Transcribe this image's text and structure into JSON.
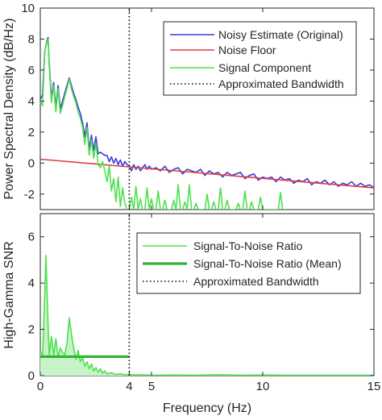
{
  "chart_data": [
    {
      "type": "line",
      "title": "",
      "xlabel": "",
      "ylabel": "Power Spectral Density (dB/Hz)",
      "xlim": [
        0,
        15
      ],
      "ylim": [
        -3,
        10
      ],
      "xticks": [
        0,
        4,
        5,
        10,
        15
      ],
      "xtick_labels_shown": false,
      "yticks": [
        -2,
        0,
        2,
        4,
        6,
        8,
        10
      ],
      "ytick_labels": [
        "-2",
        "0",
        "2",
        "4",
        "6",
        "8",
        "10"
      ],
      "grid": false,
      "legend_position": "top-right",
      "vline": {
        "x": 4,
        "style": "dotted",
        "color": "#000000"
      },
      "series": [
        {
          "name": "Noisy Estimate (Original)",
          "color": "#3b3bd6",
          "x": [
            0,
            0.1,
            0.2,
            0.3,
            0.35,
            0.4,
            0.5,
            0.6,
            0.7,
            0.8,
            0.9,
            1.0,
            1.1,
            1.2,
            1.3,
            1.4,
            1.5,
            1.6,
            1.7,
            1.8,
            1.9,
            2.0,
            2.1,
            2.2,
            2.3,
            2.4,
            2.5,
            2.6,
            2.7,
            2.8,
            2.9,
            3.0,
            3.1,
            3.2,
            3.3,
            3.4,
            3.5,
            3.6,
            3.7,
            3.8,
            3.9,
            4.0,
            4.1,
            4.2,
            4.3,
            4.4,
            4.5,
            4.6,
            4.7,
            4.8,
            4.9,
            5.0,
            5.2,
            5.4,
            5.6,
            5.8,
            6.0,
            6.2,
            6.4,
            6.6,
            6.8,
            7.0,
            7.2,
            7.4,
            7.6,
            7.8,
            8.0,
            8.2,
            8.4,
            8.6,
            8.8,
            9.0,
            9.2,
            9.4,
            9.6,
            9.8,
            10.0,
            10.2,
            10.4,
            10.6,
            10.8,
            11.0,
            11.2,
            11.4,
            11.6,
            11.8,
            12.0,
            12.2,
            12.4,
            12.6,
            12.8,
            13.0,
            13.2,
            13.4,
            13.6,
            13.8,
            14.0,
            14.2,
            14.4,
            14.6,
            14.8,
            15.0
          ],
          "y": [
            4.1,
            4.4,
            7.2,
            7.9,
            8.1,
            6.5,
            4.2,
            5.2,
            3.6,
            5.0,
            3.5,
            4.0,
            4.5,
            5.0,
            5.5,
            5.0,
            4.5,
            4.1,
            3.6,
            3.2,
            2.6,
            1.7,
            2.6,
            0.9,
            1.8,
            0.8,
            1.7,
            0.6,
            0.7,
            0.6,
            0.5,
            0.5,
            0.1,
            0.4,
            0.0,
            0.3,
            -0.1,
            0.2,
            -0.2,
            0.1,
            -0.1,
            -0.2,
            -0.5,
            -0.1,
            -0.4,
            -0.2,
            -0.5,
            -0.3,
            -0.1,
            -0.4,
            -0.2,
            -0.4,
            -0.3,
            -0.5,
            -0.2,
            -0.6,
            -0.4,
            -0.3,
            -0.7,
            -0.4,
            -0.5,
            -0.6,
            -0.4,
            -0.8,
            -0.5,
            -0.7,
            -0.6,
            -0.9,
            -0.6,
            -0.8,
            -0.7,
            -0.6,
            -1.0,
            -0.8,
            -0.7,
            -1.1,
            -0.9,
            -1.0,
            -0.9,
            -1.2,
            -0.9,
            -1.1,
            -1.0,
            -1.3,
            -1.1,
            -1.2,
            -1.0,
            -1.4,
            -1.2,
            -1.3,
            -1.1,
            -1.4,
            -1.2,
            -1.5,
            -1.3,
            -1.4,
            -1.2,
            -1.5,
            -1.3,
            -1.5,
            -1.4,
            -1.6
          ]
        },
        {
          "name": "Noise Floor",
          "color": "#e03c3c",
          "x": [
            0,
            15
          ],
          "y": [
            0.25,
            -1.6
          ]
        },
        {
          "name": "Signal Component",
          "color": "#4fe04f",
          "x": [
            0,
            0.1,
            0.2,
            0.3,
            0.35,
            0.4,
            0.5,
            0.6,
            0.7,
            0.8,
            0.9,
            1.0,
            1.1,
            1.2,
            1.3,
            1.4,
            1.5,
            1.6,
            1.7,
            1.8,
            1.9,
            2.0,
            2.1,
            2.2,
            2.3,
            2.4,
            2.5,
            2.6,
            2.7,
            2.8,
            2.9,
            3.0,
            3.1,
            3.2,
            3.3,
            3.4,
            3.5,
            3.6,
            3.7,
            3.8,
            3.9,
            4.0,
            4.1,
            4.2,
            4.3,
            4.4,
            4.5,
            4.6,
            4.7,
            4.8,
            4.9,
            5.0,
            5.1,
            5.2,
            5.3,
            5.4,
            5.5,
            5.6,
            5.7,
            5.8,
            5.9,
            6.0,
            6.1,
            6.2,
            6.3,
            6.4,
            6.5,
            6.6,
            6.7,
            6.8,
            6.9,
            7.0,
            7.1,
            7.2,
            7.3,
            7.4,
            7.5,
            7.6,
            7.7,
            7.8,
            7.9,
            8.0,
            8.1,
            8.2,
            8.3,
            8.4,
            8.5,
            8.6,
            8.7,
            8.8,
            8.9,
            9.0,
            9.1,
            9.2,
            9.3,
            9.4,
            9.5,
            9.6,
            9.7,
            9.8,
            9.9,
            10.0,
            10.1,
            10.2,
            10.3,
            10.4,
            10.5,
            10.6,
            10.7,
            10.8,
            10.9,
            11.0
          ],
          "y": [
            4.0,
            3.7,
            7.2,
            7.8,
            8.0,
            6.3,
            3.9,
            5.0,
            3.3,
            4.8,
            3.2,
            3.7,
            4.3,
            4.8,
            5.4,
            4.8,
            4.3,
            3.9,
            3.3,
            2.9,
            2.3,
            1.2,
            2.3,
            0.5,
            1.5,
            0.3,
            1.3,
            -0.1,
            -0.3,
            0.1,
            -0.5,
            -1.2,
            -0.2,
            -1.8,
            -1.0,
            -2.5,
            -0.9,
            -2.8,
            -1.6,
            -2.6,
            -3.0,
            -3.0,
            -2.2,
            -3.0,
            -1.5,
            -3.0,
            -2.3,
            -3.0,
            -3.0,
            -1.6,
            -3.0,
            -2.3,
            -3.0,
            -3.0,
            -1.8,
            -3.0,
            -3.0,
            -2.4,
            -3.0,
            -3.0,
            -3.0,
            -2.4,
            -3.0,
            -1.4,
            -3.0,
            -3.0,
            -2.5,
            -3.0,
            -1.4,
            -3.0,
            -3.0,
            -2.6,
            -3.0,
            -3.0,
            -3.0,
            -3.0,
            -2.0,
            -3.0,
            -3.0,
            -2.5,
            -3.0,
            -3.0,
            -1.6,
            -3.0,
            -3.0,
            -2.4,
            -3.0,
            -3.0,
            -3.0,
            -3.0,
            -2.6,
            -3.0,
            -3.0,
            -1.8,
            -3.0,
            -3.0,
            -2.5,
            -3.0,
            -3.0,
            -3.0,
            -2.2,
            -3.0,
            -3.0,
            -3.0,
            -3.0,
            -3.0,
            -3.0,
            -3.0,
            -3.0,
            -1.9,
            -3.0,
            -3.0
          ]
        },
        {
          "name": "Approximated Bandwidth",
          "color": "#000000",
          "style": "dotted",
          "x": [
            4,
            4
          ],
          "y": [
            -3,
            10
          ]
        }
      ]
    },
    {
      "type": "area",
      "title": "",
      "xlabel": "Frequency (Hz)",
      "ylabel": "High-Gamma SNR",
      "xlim": [
        0,
        15
      ],
      "ylim": [
        0,
        7
      ],
      "xticks": [
        0,
        4,
        5,
        10,
        15
      ],
      "xtick_labels": [
        "0",
        "4",
        "5",
        "10",
        "15"
      ],
      "yticks": [
        0,
        2,
        4,
        6
      ],
      "ytick_labels": [
        "0",
        "2",
        "4",
        "6"
      ],
      "grid": false,
      "legend_position": "top-right",
      "series": [
        {
          "name": "Signal-To-Noise Ratio",
          "color": "#4fe04f",
          "fill": "#c8f2c8",
          "x": [
            0,
            0.1,
            0.2,
            0.25,
            0.3,
            0.35,
            0.4,
            0.5,
            0.6,
            0.7,
            0.8,
            0.9,
            1.0,
            1.1,
            1.2,
            1.3,
            1.4,
            1.5,
            1.6,
            1.7,
            1.8,
            1.9,
            2.0,
            2.1,
            2.2,
            2.3,
            2.4,
            2.5,
            2.6,
            2.7,
            2.8,
            2.9,
            3.0,
            3.2,
            3.4,
            3.6,
            3.8,
            4.0,
            4.2,
            4.5,
            5.0,
            6.0,
            7.0,
            8.0,
            9.0,
            10.0,
            11.0,
            12.0,
            13.0,
            14.0,
            15.0
          ],
          "y": [
            1.1,
            0.8,
            3.5,
            5.2,
            3.8,
            2.2,
            0.9,
            1.7,
            0.9,
            1.6,
            0.8,
            1.2,
            1.0,
            0.9,
            1.4,
            2.5,
            1.8,
            1.2,
            0.7,
            1.1,
            0.6,
            0.8,
            0.4,
            0.6,
            0.3,
            0.5,
            0.2,
            0.35,
            0.15,
            0.3,
            0.1,
            0.2,
            0.08,
            0.12,
            0.05,
            0.08,
            0.04,
            0.05,
            0.03,
            0.04,
            0.02,
            0.03,
            0.02,
            0.04,
            0.02,
            0.03,
            0.02,
            0.02,
            0.02,
            0.02,
            0.02
          ]
        },
        {
          "name": "Signal-To-Noise Ratio (Mean)",
          "color": "#2fb52f",
          "x": [
            0,
            4
          ],
          "y": [
            0.82,
            0.82
          ]
        },
        {
          "name": "Approximated Bandwidth",
          "color": "#000000",
          "style": "dotted",
          "x": [
            4,
            4
          ],
          "y": [
            0,
            7
          ]
        }
      ]
    }
  ]
}
